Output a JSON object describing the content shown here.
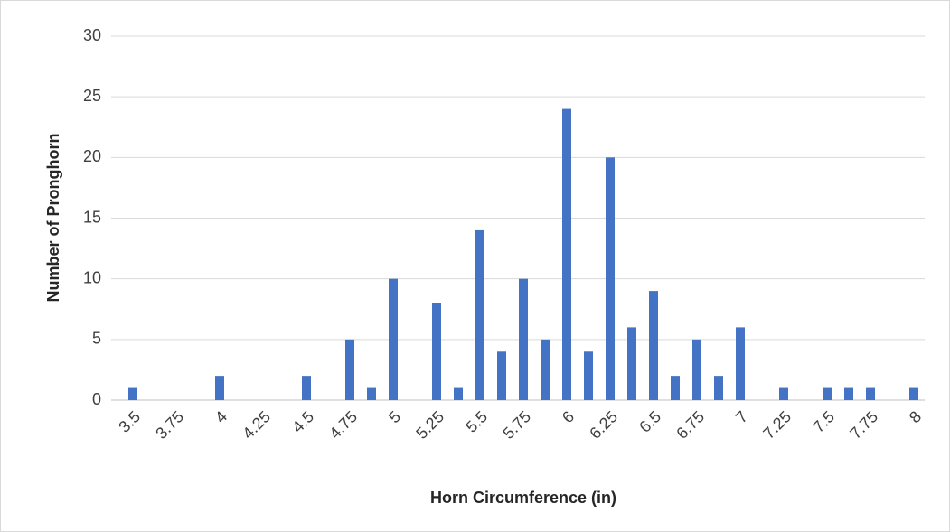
{
  "chart_data": {
    "type": "bar",
    "x_label": "Horn Circumference (in)",
    "y_label": "Number of Pronghorn",
    "categories": [
      "3.5",
      null,
      "3.75",
      null,
      "4",
      null,
      "4.25",
      null,
      "4.5",
      null,
      "4.75",
      null,
      "5",
      null,
      "5.25",
      null,
      "5.5",
      null,
      "5.75",
      null,
      "6",
      null,
      "6.25",
      null,
      "6.5",
      null,
      "6.75",
      null,
      "7",
      null,
      "7.25",
      null,
      "7.5",
      null,
      "7.75",
      null,
      "8"
    ],
    "values": [
      1,
      0,
      0,
      0,
      2,
      0,
      0,
      0,
      2,
      0,
      5,
      1,
      10,
      0,
      8,
      1,
      14,
      4,
      10,
      5,
      24,
      4,
      20,
      6,
      9,
      2,
      5,
      2,
      6,
      0,
      1,
      0,
      1,
      1,
      1,
      0,
      1
    ],
    "color": "#4472c4",
    "ylim": [
      0,
      30
    ],
    "yticks": [
      0,
      5,
      10,
      15,
      20,
      25,
      30
    ],
    "grid": true
  }
}
